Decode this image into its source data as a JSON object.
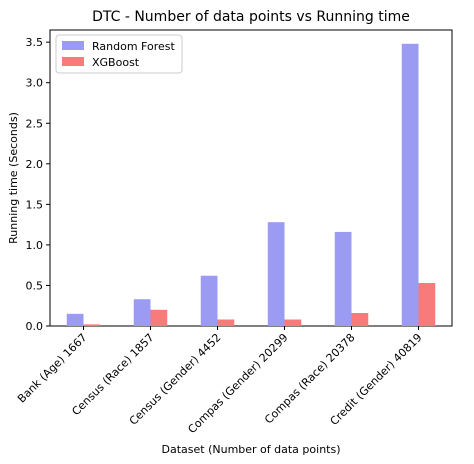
{
  "chart_data": {
    "type": "bar",
    "title": "DTC - Number of data points vs Running time",
    "xlabel": "Dataset (Number of data points)",
    "ylabel": "Running time (Seconds)",
    "categories": [
      "Bank (Age) 1667",
      "Census (Race) 1857",
      "Census (Gender) 4452",
      "Compas (Gender) 20299",
      "Compas (Race) 20378",
      "Credit (Gender) 40819"
    ],
    "series": [
      {
        "name": "Random Forest",
        "color": "#9b9bf4",
        "values": [
          0.15,
          0.33,
          0.62,
          1.28,
          1.16,
          3.48
        ]
      },
      {
        "name": "XGBoost",
        "color": "#f77b7b",
        "values": [
          0.02,
          0.2,
          0.08,
          0.08,
          0.16,
          0.53
        ]
      }
    ],
    "ylim": [
      0,
      3.65
    ],
    "yticks": [
      "0.0",
      "0.5",
      "1.0",
      "1.5",
      "2.0",
      "2.5",
      "3.0",
      "3.5"
    ],
    "legend_position": "top-left",
    "grid": false
  }
}
